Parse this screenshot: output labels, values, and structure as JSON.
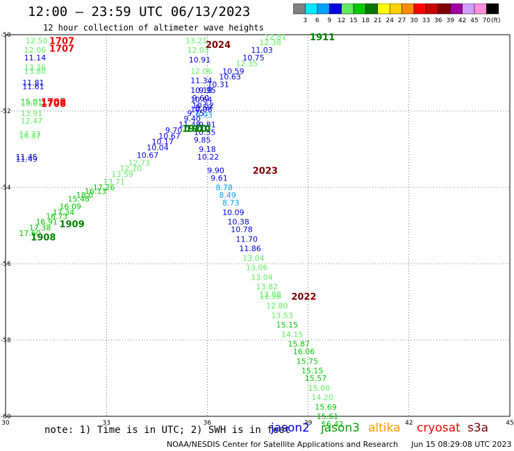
{
  "header": {
    "title": "12:00 – 23:59 UTC 06/13/2023",
    "subtitle": "12 hour collection of altimeter wave heights"
  },
  "legend": {
    "unit_label": "(ft)",
    "bins": [
      {
        "label": "3",
        "color": "#808080"
      },
      {
        "label": "6",
        "color": "#00e8ff"
      },
      {
        "label": "9",
        "color": "#00a0ff"
      },
      {
        "label": "12",
        "color": "#0000e0"
      },
      {
        "label": "15",
        "color": "#60ee60"
      },
      {
        "label": "18",
        "color": "#00c800"
      },
      {
        "label": "21",
        "color": "#007800"
      },
      {
        "label": "24",
        "color": "#ffff00"
      },
      {
        "label": "27",
        "color": "#ffd000"
      },
      {
        "label": "30",
        "color": "#ff8c00"
      },
      {
        "label": "33",
        "color": "#ff0000"
      },
      {
        "label": "36",
        "color": "#c80000"
      },
      {
        "label": "39",
        "color": "#800000"
      },
      {
        "label": "42",
        "color": "#a000a0"
      },
      {
        "label": "45",
        "color": "#d0a0ff"
      },
      {
        "label": "70",
        "color": "#ff90e0"
      },
      {
        "label": "",
        "color": "#000000"
      }
    ]
  },
  "footer": {
    "note": "note: 1) Time is in UTC; 2) SWH is in feet",
    "credit": "NOAA/NESDIS Center for Satellite Applications and Research",
    "timestamp": "Jun 15 08:29:08 UTC 2023",
    "satellites": [
      {
        "name": "jason2",
        "color": "#0000dd"
      },
      {
        "name": "jason3",
        "color": "#00a000"
      },
      {
        "name": "altika",
        "color": "#ff9900"
      },
      {
        "name": "cryosat",
        "color": "#ee0000"
      },
      {
        "name": "s3a",
        "color": "#800000"
      }
    ]
  },
  "chart_data": {
    "type": "scatter",
    "xlim": [
      30,
      45
    ],
    "ylim": [
      -60,
      -50
    ],
    "x_ticks": [
      "30",
      "33",
      "36",
      "39",
      "42",
      "45"
    ],
    "y_ticks": [
      "-50",
      "-52",
      "-54",
      "-56",
      "-58",
      "-60"
    ],
    "grid": true,
    "points": [
      {
        "lon": 30.6,
        "lat": -50.15,
        "value": "12.50",
        "color": "#60ee60"
      },
      {
        "lon": 30.55,
        "lat": -50.4,
        "value": "12.06",
        "color": "#60ee60"
      },
      {
        "lon": 30.55,
        "lat": -50.6,
        "value": "11.14",
        "color": "#0000e0"
      },
      {
        "lon": 30.55,
        "lat": -50.85,
        "value": "13.36",
        "color": "#60ee60"
      },
      {
        "lon": 30.55,
        "lat": -50.95,
        "value": "13.80",
        "color": "#60ee60"
      },
      {
        "lon": 30.5,
        "lat": -51.25,
        "value": "11.81",
        "color": "#0000e0"
      },
      {
        "lon": 30.5,
        "lat": -51.35,
        "value": "11.61",
        "color": "#0000e0"
      },
      {
        "lon": 30.45,
        "lat": -51.75,
        "value": "15.01",
        "color": "#00c800"
      },
      {
        "lon": 30.45,
        "lat": -51.8,
        "value": "15.01",
        "color": "#60ee60"
      },
      {
        "lon": 30.45,
        "lat": -52.05,
        "value": "13.91",
        "color": "#60ee60"
      },
      {
        "lon": 30.45,
        "lat": -52.25,
        "value": "12.47",
        "color": "#60ee60"
      },
      {
        "lon": 30.4,
        "lat": -52.6,
        "value": "14.27",
        "color": "#60ee60"
      },
      {
        "lon": 30.4,
        "lat": -52.65,
        "value": "14.37",
        "color": "#60ee60"
      },
      {
        "lon": 30.3,
        "lat": -53.2,
        "value": "11.45",
        "color": "#0000e0"
      },
      {
        "lon": 30.3,
        "lat": -53.25,
        "value": "11.49",
        "color": "#0000e0"
      },
      {
        "lon": 35.35,
        "lat": -50.15,
        "value": "13.21",
        "color": "#60ee60"
      },
      {
        "lon": 35.4,
        "lat": -50.4,
        "value": "12.03",
        "color": "#60ee60"
      },
      {
        "lon": 35.45,
        "lat": -50.65,
        "value": "10.91",
        "color": "#0000e0"
      },
      {
        "lon": 35.5,
        "lat": -50.95,
        "value": "12.06",
        "color": "#60ee60"
      },
      {
        "lon": 35.5,
        "lat": -51.2,
        "value": "11.34",
        "color": "#0000e0"
      },
      {
        "lon": 35.5,
        "lat": -51.45,
        "value": "10.18",
        "color": "#0000e0"
      },
      {
        "lon": 35.5,
        "lat": -51.7,
        "value": "10.64",
        "color": "#0000e0"
      },
      {
        "lon": 35.55,
        "lat": -51.85,
        "value": "10.52",
        "color": "#0000e0"
      },
      {
        "lon": 35.5,
        "lat": -51.95,
        "value": "10.06",
        "color": "#0000e0"
      },
      {
        "lon": 35.4,
        "lat": -52.05,
        "value": "9.75",
        "color": "#0000e0"
      },
      {
        "lon": 35.3,
        "lat": -52.2,
        "value": "9.40",
        "color": "#0000e0"
      },
      {
        "lon": 35.15,
        "lat": -52.35,
        "value": "11.48",
        "color": "#0000e0"
      },
      {
        "lon": 34.75,
        "lat": -52.5,
        "value": "9.70",
        "color": "#0000e0"
      },
      {
        "lon": 34.55,
        "lat": -52.65,
        "value": "10.67",
        "color": "#0000e0"
      },
      {
        "lon": 34.35,
        "lat": -52.8,
        "value": "10.17",
        "color": "#0000e0"
      },
      {
        "lon": 34.2,
        "lat": -52.95,
        "value": "10.04",
        "color": "#0000e0"
      },
      {
        "lon": 33.9,
        "lat": -53.15,
        "value": "10.67",
        "color": "#0000e0"
      },
      {
        "lon": 33.65,
        "lat": -53.35,
        "value": "12.73",
        "color": "#60ee60"
      },
      {
        "lon": 33.4,
        "lat": -53.5,
        "value": "12.20",
        "color": "#60ee60"
      },
      {
        "lon": 33.15,
        "lat": -53.65,
        "value": "13.59",
        "color": "#60ee60"
      },
      {
        "lon": 32.9,
        "lat": -53.85,
        "value": "13.71",
        "color": "#60ee60"
      },
      {
        "lon": 32.6,
        "lat": -54.0,
        "value": "17.26",
        "color": "#00c800"
      },
      {
        "lon": 32.35,
        "lat": -54.1,
        "value": "16.13",
        "color": "#00c800"
      },
      {
        "lon": 32.1,
        "lat": -54.2,
        "value": "18.0",
        "color": "#00c800"
      },
      {
        "lon": 31.85,
        "lat": -54.3,
        "value": "15.48",
        "color": "#00c800"
      },
      {
        "lon": 31.6,
        "lat": -54.5,
        "value": "16.09",
        "color": "#00c800"
      },
      {
        "lon": 31.4,
        "lat": -54.65,
        "value": "17.34",
        "color": "#00c800"
      },
      {
        "lon": 31.2,
        "lat": -54.75,
        "value": "16.73",
        "color": "#00c800"
      },
      {
        "lon": 30.9,
        "lat": -54.9,
        "value": "16.91",
        "color": "#00c800"
      },
      {
        "lon": 30.7,
        "lat": -55.05,
        "value": "17.38",
        "color": "#00c800"
      },
      {
        "lon": 30.4,
        "lat": -55.2,
        "value": "17.60",
        "color": "#00c800"
      },
      {
        "lon": 37.7,
        "lat": -50.05,
        "value": "12.81",
        "color": "#60ee60"
      },
      {
        "lon": 37.55,
        "lat": -50.2,
        "value": "12.38",
        "color": "#60ee60"
      },
      {
        "lon": 37.3,
        "lat": -50.4,
        "value": "11.03",
        "color": "#0000e0"
      },
      {
        "lon": 37.05,
        "lat": -50.6,
        "value": "10.75",
        "color": "#0000e0"
      },
      {
        "lon": 36.85,
        "lat": -50.75,
        "value": "12.35",
        "color": "#60ee60"
      },
      {
        "lon": 36.45,
        "lat": -50.95,
        "value": "10.59",
        "color": "#0000e0"
      },
      {
        "lon": 36.35,
        "lat": -51.1,
        "value": "10.63",
        "color": "#0000e0"
      },
      {
        "lon": 36.0,
        "lat": -51.3,
        "value": "10.31",
        "color": "#0000e0"
      },
      {
        "lon": 35.75,
        "lat": -51.45,
        "value": "9.95",
        "color": "#0000e0"
      },
      {
        "lon": 35.55,
        "lat": -51.65,
        "value": "9.60",
        "color": "#0000e0"
      },
      {
        "lon": 35.65,
        "lat": -51.9,
        "value": "9.57",
        "color": "#0000e0"
      },
      {
        "lon": 35.65,
        "lat": -52.1,
        "value": "9.93",
        "color": "#00a0ff"
      },
      {
        "lon": 35.75,
        "lat": -52.35,
        "value": "9.81",
        "color": "#0000e0"
      },
      {
        "lon": 35.6,
        "lat": -52.55,
        "value": "10.35",
        "color": "#0000e0"
      },
      {
        "lon": 35.6,
        "lat": -52.75,
        "value": "9.85",
        "color": "#0000e0"
      },
      {
        "lon": 35.75,
        "lat": -53.0,
        "value": "9.18",
        "color": "#0000e0"
      },
      {
        "lon": 35.7,
        "lat": -53.2,
        "value": "10.22",
        "color": "#0000e0"
      },
      {
        "lon": 36.0,
        "lat": -53.55,
        "value": "9.90",
        "color": "#0000e0"
      },
      {
        "lon": 36.1,
        "lat": -53.75,
        "value": "9.61",
        "color": "#0000e0"
      },
      {
        "lon": 36.25,
        "lat": -54.0,
        "value": "8.78",
        "color": "#00a0ff"
      },
      {
        "lon": 36.35,
        "lat": -54.2,
        "value": "8.49",
        "color": "#00a0ff"
      },
      {
        "lon": 36.45,
        "lat": -54.4,
        "value": "8.73",
        "color": "#00a0ff"
      },
      {
        "lon": 36.45,
        "lat": -54.65,
        "value": "10.09",
        "color": "#0000e0"
      },
      {
        "lon": 36.6,
        "lat": -54.9,
        "value": "10.38",
        "color": "#0000e0"
      },
      {
        "lon": 36.7,
        "lat": -55.1,
        "value": "10.78",
        "color": "#0000e0"
      },
      {
        "lon": 36.85,
        "lat": -55.35,
        "value": "11.70",
        "color": "#0000e0"
      },
      {
        "lon": 36.95,
        "lat": -55.6,
        "value": "11.86",
        "color": "#0000e0"
      },
      {
        "lon": 37.05,
        "lat": -55.85,
        "value": "13.04",
        "color": "#60ee60"
      },
      {
        "lon": 37.15,
        "lat": -56.1,
        "value": "13.06",
        "color": "#60ee60"
      },
      {
        "lon": 37.3,
        "lat": -56.35,
        "value": "13.04",
        "color": "#60ee60"
      },
      {
        "lon": 37.45,
        "lat": -56.6,
        "value": "13.82",
        "color": "#60ee60"
      },
      {
        "lon": 37.55,
        "lat": -56.8,
        "value": "12.88",
        "color": "#60ee60"
      },
      {
        "lon": 37.55,
        "lat": -56.85,
        "value": "13.36",
        "color": "#60ee60"
      },
      {
        "lon": 37.75,
        "lat": -57.1,
        "value": "12.80",
        "color": "#60ee60"
      },
      {
        "lon": 37.9,
        "lat": -57.35,
        "value": "13.53",
        "color": "#60ee60"
      },
      {
        "lon": 38.05,
        "lat": -57.6,
        "value": "15.15",
        "color": "#00c800"
      },
      {
        "lon": 38.2,
        "lat": -57.85,
        "value": "14.15",
        "color": "#60ee60"
      },
      {
        "lon": 38.4,
        "lat": -58.1,
        "value": "15.87",
        "color": "#00c800"
      },
      {
        "lon": 38.55,
        "lat": -58.3,
        "value": "16.06",
        "color": "#00c800"
      },
      {
        "lon": 38.65,
        "lat": -58.55,
        "value": "15.75",
        "color": "#00c800"
      },
      {
        "lon": 38.8,
        "lat": -58.8,
        "value": "15.15",
        "color": "#00c800"
      },
      {
        "lon": 38.9,
        "lat": -59.0,
        "value": "15.57",
        "color": "#00c800"
      },
      {
        "lon": 39.0,
        "lat": -59.25,
        "value": "15.00",
        "color": "#60ee60"
      },
      {
        "lon": 39.1,
        "lat": -59.5,
        "value": "14.20",
        "color": "#60ee60"
      },
      {
        "lon": 39.2,
        "lat": -59.75,
        "value": "15.69",
        "color": "#00c800"
      },
      {
        "lon": 39.25,
        "lat": -60.0,
        "value": "15.61",
        "color": "#00c800"
      },
      {
        "lon": 39.4,
        "lat": -60.2,
        "value": "16.42",
        "color": "#00c800"
      }
    ],
    "time_labels": [
      {
        "lon": 31.3,
        "lat": -50.15,
        "value": "1707",
        "color": "#ff0000"
      },
      {
        "lon": 31.3,
        "lat": -50.35,
        "value": "1707",
        "color": "#ff0000"
      },
      {
        "lon": 31.05,
        "lat": -51.75,
        "value": "1708",
        "color": "#ff0000"
      },
      {
        "lon": 31.05,
        "lat": -51.8,
        "value": "1708",
        "color": "#ff0000"
      },
      {
        "lon": 35.95,
        "lat": -50.25,
        "value": "2024",
        "color": "#800000"
      },
      {
        "lon": 35.25,
        "lat": -52.45,
        "value": "1910",
        "color": "#008000"
      },
      {
        "lon": 35.35,
        "lat": -52.45,
        "value": "1910",
        "color": "#008000"
      },
      {
        "lon": 39.05,
        "lat": -50.05,
        "value": "1911",
        "color": "#008000"
      },
      {
        "lon": 31.6,
        "lat": -54.95,
        "value": "1909",
        "color": "#008000"
      },
      {
        "lon": 30.75,
        "lat": -55.3,
        "value": "1908",
        "color": "#008000"
      },
      {
        "lon": 37.35,
        "lat": -53.55,
        "value": "2023",
        "color": "#800000"
      },
      {
        "lon": 38.5,
        "lat": -56.85,
        "value": "2022",
        "color": "#800000"
      }
    ]
  }
}
